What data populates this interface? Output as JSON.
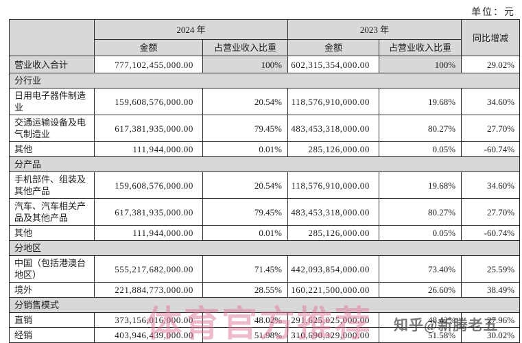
{
  "meta": {
    "unit_label": "单位：元"
  },
  "table": {
    "header": {
      "year_2024": "2024 年",
      "year_2023": "2023 年",
      "amount": "金额",
      "pct_of_revenue": "占营业收入比重",
      "yoy": "同比增减"
    },
    "rows": [
      {
        "type": "data",
        "shaded": true,
        "label": "营业收入合计",
        "a24": "777,102,455,000.00",
        "p24": "100%",
        "a23": "602,315,354,000.00",
        "p23": "100%",
        "yoy": "29.02%"
      },
      {
        "type": "section",
        "label": "分行业"
      },
      {
        "type": "data",
        "label": "日用电子器件制造业",
        "a24": "159,608,576,000.00",
        "p24": "20.54%",
        "a23": "118,576,910,000.00",
        "p23": "19.68%",
        "yoy": "34.60%"
      },
      {
        "type": "data",
        "label": "交通运输设备及电气制造业",
        "a24": "617,381,935,000.00",
        "p24": "79.45%",
        "a23": "483,453,318,000.00",
        "p23": "80.27%",
        "yoy": "27.70%"
      },
      {
        "type": "data",
        "label": "其他",
        "a24": "111,944,000.00",
        "p24": "0.01%",
        "a23": "285,126,000.00",
        "p23": "0.05%",
        "yoy": "-60.74%"
      },
      {
        "type": "section",
        "label": "分产品"
      },
      {
        "type": "data",
        "label": "手机部件、组装及其他产品",
        "a24": "159,608,576,000.00",
        "p24": "20.54%",
        "a23": "118,576,910,000.00",
        "p23": "19.68%",
        "yoy": "34.60%"
      },
      {
        "type": "data",
        "label": "汽车、汽车相关产品及其他产品",
        "a24": "617,381,935,000.00",
        "p24": "79.45%",
        "a23": "483,453,318,000.00",
        "p23": "80.27%",
        "yoy": "27.70%"
      },
      {
        "type": "data",
        "label": "其他",
        "a24": "111,944,000.00",
        "p24": "0.01%",
        "a23": "285,126,000.00",
        "p23": "0.05%",
        "yoy": "-60.74%"
      },
      {
        "type": "section",
        "label": "分地区"
      },
      {
        "type": "data",
        "label": "中国（包括港澳台地区）",
        "a24": "555,217,682,000.00",
        "p24": "71.45%",
        "a23": "442,093,854,000.00",
        "p23": "73.40%",
        "yoy": "25.59%"
      },
      {
        "type": "data",
        "label": "境外",
        "a24": "221,884,773,000.00",
        "p24": "28.55%",
        "a23": "160,221,500,000.00",
        "p23": "26.60%",
        "yoy": "38.49%"
      },
      {
        "type": "section",
        "label": "分销售模式"
      },
      {
        "type": "data",
        "label": "直销",
        "a24": "373,156,016,000.00",
        "p24": "48.02%",
        "a23": "291,625,025,000.00",
        "p23": "48.42%",
        "yoy": "27.96%"
      },
      {
        "type": "data",
        "label": "经销",
        "a24": "403,946,439,000.00",
        "p24": "51.98%",
        "a23": "310,690,329,000.00",
        "p23": "51.58%",
        "yoy": "30.02%"
      }
    ]
  },
  "watermarks": {
    "promo": "体育官方推荐",
    "zhihu": "知乎@新腾老五"
  },
  "colors": {
    "header_bg": "#d8d8d8",
    "border": "#2b2b2b",
    "promo_watermark": "#de789e",
    "zhihu_watermark": "#464646"
  }
}
